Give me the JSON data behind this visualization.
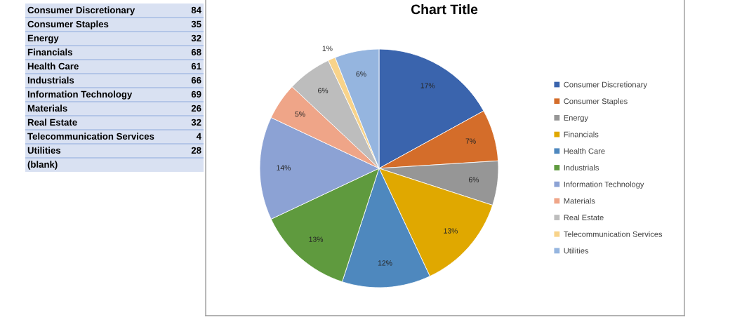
{
  "chart_data": [
    {
      "type": "other",
      "categories": [
        "Consumer Discretionary",
        "Consumer Staples",
        "Energy",
        "Financials",
        "Health Care",
        "Industrials",
        "Information Technology",
        "Materials",
        "Real Estate",
        "Telecommunication Services",
        "Utilities"
      ],
      "values": [
        84,
        35,
        32,
        68,
        61,
        66,
        69,
        26,
        32,
        4,
        28
      ],
      "data_labels": true,
      "annotations": [
        "(blank)"
      ]
    },
    {
      "type": "pie",
      "title": "Chart Title",
      "categories": [
        "Consumer Discretionary",
        "Consumer Staples",
        "Energy",
        "Financials",
        "Health Care",
        "Industrials",
        "Information Technology",
        "Materials",
        "Real Estate",
        "Telecommunication Services",
        "Utilities"
      ],
      "values": [
        17,
        7,
        6,
        13,
        12,
        13,
        14,
        5,
        6,
        1,
        6
      ],
      "colors": [
        "#3a64ad",
        "#d46d2a",
        "#969696",
        "#e0a800",
        "#4e88be",
        "#5f9a3e",
        "#8ca2d4",
        "#efa588",
        "#bdbdbd",
        "#f8d38a",
        "#95b5df"
      ],
      "value_labels": [
        "17%",
        "7%",
        "6%",
        "13%",
        "12%",
        "13%",
        "14%",
        "5%",
        "6%",
        "1%",
        "6%"
      ],
      "legend": "right"
    }
  ]
}
